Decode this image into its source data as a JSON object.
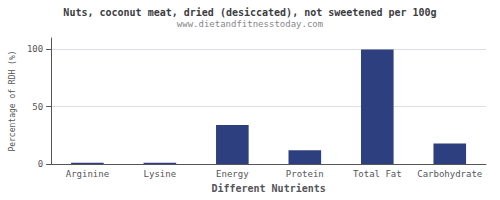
{
  "chart_data": {
    "type": "bar",
    "title": "Nuts, coconut meat, dried (desiccated), not sweetened per 100g",
    "subtitle": "www.dietandfitnesstoday.com",
    "xlabel": "Different Nutrients",
    "ylabel": "Percentage of RDH (%)",
    "categories": [
      "Arginine",
      "Lysine",
      "Energy",
      "Protein",
      "Total Fat",
      "Carbohydrate"
    ],
    "values": [
      1,
      1,
      34,
      12,
      100,
      18
    ],
    "color": "#2e3f7f",
    "ylim": [
      0,
      110
    ],
    "yticks": [
      0,
      50,
      100
    ],
    "grid": true
  }
}
